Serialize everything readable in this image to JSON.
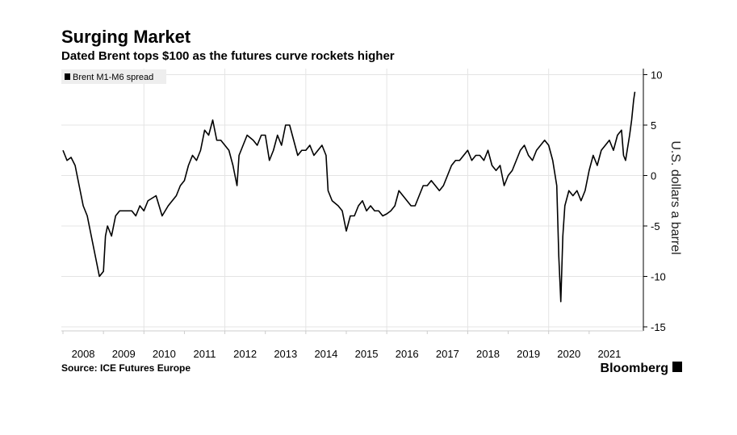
{
  "chart_data": {
    "type": "line",
    "title": "Surging Market",
    "subtitle": "Dated Brent tops $100 as the futures curve rockets higher",
    "y_label": "U.S. dollars a barrel",
    "source": "Source: ICE Futures Europe",
    "brand": "Bloomberg",
    "x": [
      2008.0,
      2008.1,
      2008.2,
      2008.3,
      2008.4,
      2008.5,
      2008.6,
      2008.7,
      2008.8,
      2008.9,
      2009.0,
      2009.05,
      2009.1,
      2009.2,
      2009.3,
      2009.4,
      2009.5,
      2009.7,
      2009.8,
      2009.9,
      2010.0,
      2010.1,
      2010.3,
      2010.45,
      2010.6,
      2010.8,
      2010.9,
      2011.0,
      2011.1,
      2011.2,
      2011.3,
      2011.4,
      2011.5,
      2011.6,
      2011.7,
      2011.8,
      2011.9,
      2012.0,
      2012.1,
      2012.2,
      2012.3,
      2012.35,
      2012.45,
      2012.55,
      2012.7,
      2012.8,
      2012.9,
      2013.0,
      2013.1,
      2013.2,
      2013.3,
      2013.4,
      2013.5,
      2013.6,
      2013.7,
      2013.8,
      2013.9,
      2014.0,
      2014.1,
      2014.2,
      2014.3,
      2014.4,
      2014.5,
      2014.55,
      2014.65,
      2014.8,
      2014.9,
      2015.0,
      2015.1,
      2015.2,
      2015.3,
      2015.4,
      2015.5,
      2015.6,
      2015.7,
      2015.8,
      2015.9,
      2016.0,
      2016.1,
      2016.2,
      2016.3,
      2016.4,
      2016.5,
      2016.6,
      2016.7,
      2016.8,
      2016.9,
      2017.0,
      2017.1,
      2017.2,
      2017.3,
      2017.4,
      2017.5,
      2017.6,
      2017.7,
      2017.8,
      2017.9,
      2018.0,
      2018.1,
      2018.2,
      2018.3,
      2018.4,
      2018.5,
      2018.6,
      2018.7,
      2018.8,
      2018.9,
      2019.0,
      2019.1,
      2019.2,
      2019.3,
      2019.4,
      2019.5,
      2019.6,
      2019.7,
      2019.8,
      2019.9,
      2020.0,
      2020.1,
      2020.2,
      2020.25,
      2020.3,
      2020.35,
      2020.4,
      2020.5,
      2020.6,
      2020.7,
      2020.8,
      2020.9,
      2021.0,
      2021.1,
      2021.2,
      2021.3,
      2021.4,
      2021.5,
      2021.6,
      2021.7,
      2021.8,
      2021.85,
      2021.9,
      2022.0,
      2022.05,
      2022.1,
      2022.13
    ],
    "series": [
      {
        "name": "Brent M1-M6 spread",
        "color": "#000000",
        "values": [
          2.5,
          1.5,
          1.8,
          1.0,
          -1,
          -3,
          -4,
          -6,
          -8,
          -10,
          -9.5,
          -6,
          -5,
          -6,
          -4,
          -3.5,
          -3.5,
          -3.5,
          -4,
          -3,
          -3.5,
          -2.5,
          -2,
          -4,
          -3,
          -2,
          -1,
          -0.5,
          1,
          2,
          1.5,
          2.5,
          4.5,
          4,
          5.5,
          3.5,
          3.5,
          3,
          2.5,
          1,
          -1,
          2,
          3,
          4,
          3.5,
          3,
          4,
          4,
          1.5,
          2.5,
          4,
          3,
          5,
          5,
          3.5,
          2,
          2.5,
          2.5,
          3,
          2,
          2.5,
          3,
          2,
          -1.5,
          -2.5,
          -3,
          -3.5,
          -5.5,
          -4,
          -4,
          -3,
          -2.5,
          -3.5,
          -3,
          -3.5,
          -3.5,
          -4,
          -3.8,
          -3.5,
          -3,
          -1.5,
          -2,
          -2.5,
          -3,
          -3,
          -2,
          -1,
          -1,
          -0.5,
          -1,
          -1.5,
          -1,
          0,
          1,
          1.5,
          1.5,
          2,
          2.5,
          1.5,
          2,
          2,
          1.5,
          2.5,
          1,
          0.5,
          1,
          -1,
          0,
          0.5,
          1.5,
          2.5,
          3,
          2,
          1.5,
          2.5,
          3,
          3.5,
          3,
          1.5,
          -1,
          -8,
          -12.5,
          -6,
          -3,
          -1.5,
          -2,
          -1.5,
          -2.5,
          -1.5,
          0.5,
          2,
          1,
          2.5,
          3,
          3.5,
          2.5,
          4,
          4.5,
          2,
          1.5,
          4,
          5.5,
          7.5,
          8.3
        ]
      }
    ],
    "xlim": [
      2007.96,
      2022.2
    ],
    "xticks": [
      {
        "value": 2008,
        "label": "2008"
      },
      {
        "value": 2009,
        "label": "2009"
      },
      {
        "value": 2010,
        "label": "2010"
      },
      {
        "value": 2011,
        "label": "2011"
      },
      {
        "value": 2012,
        "label": "2012"
      },
      {
        "value": 2013,
        "label": "2013"
      },
      {
        "value": 2014,
        "label": "2014"
      },
      {
        "value": 2015,
        "label": "2015"
      },
      {
        "value": 2016,
        "label": "2016"
      },
      {
        "value": 2017,
        "label": "2017"
      },
      {
        "value": 2018,
        "label": "2018"
      },
      {
        "value": 2019,
        "label": "2019"
      },
      {
        "value": 2020,
        "label": "2020"
      },
      {
        "value": 2021,
        "label": "2021"
      }
    ],
    "xgrid": [
      2010,
      2012,
      2014,
      2016,
      2018,
      2020
    ],
    "ylim": [
      -15.4,
      10.6
    ],
    "yticks": [
      -15,
      -10,
      -5,
      0,
      5,
      10
    ],
    "grid": true
  }
}
